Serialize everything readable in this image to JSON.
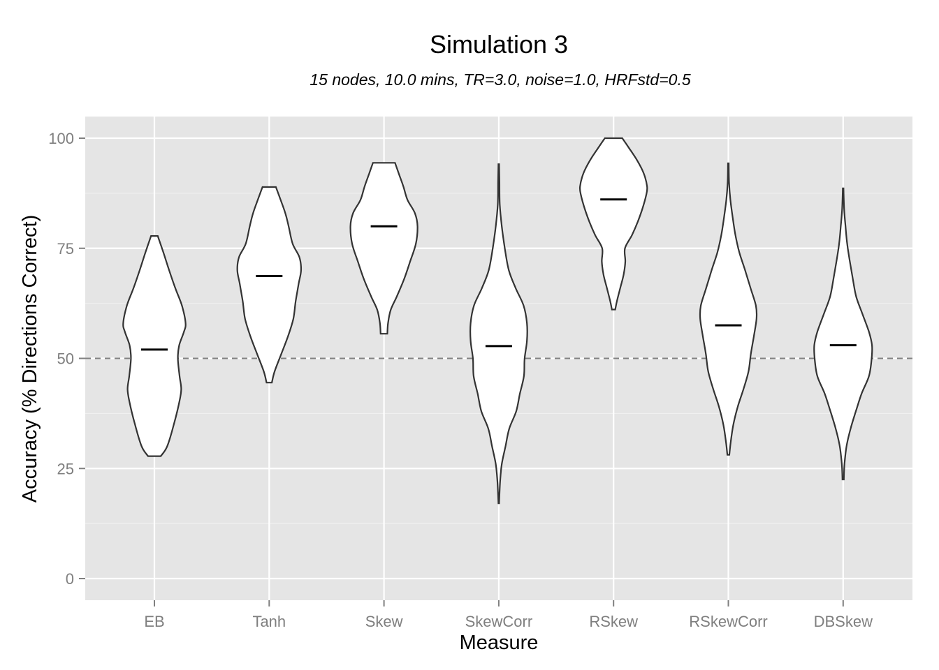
{
  "chart_data": {
    "type": "violin",
    "title": "Simulation 3",
    "subtitle": "15 nodes, 10.0 mins, TR=3.0, noise=1.0, HRFstd=0.5",
    "xlabel": "Measure",
    "ylabel": "Accuracy (% Directions Correct)",
    "ylim": [
      -5,
      105
    ],
    "yticks": [
      0,
      25,
      50,
      75,
      100
    ],
    "reference_line": 50,
    "grid": true,
    "categories": [
      "EB",
      "Tanh",
      "Skew",
      "SkewCorr",
      "RSkew",
      "RSkewCorr",
      "DBSkew"
    ],
    "series": [
      {
        "category": "EB",
        "min": 27.8,
        "max": 77.8,
        "median": 52.0,
        "density": [
          [
            27.8,
            0.19
          ],
          [
            30,
            0.38
          ],
          [
            35,
            0.58
          ],
          [
            40,
            0.74
          ],
          [
            43,
            0.8
          ],
          [
            46,
            0.75
          ],
          [
            50,
            0.7
          ],
          [
            53,
            0.74
          ],
          [
            56,
            0.88
          ],
          [
            58,
            0.93
          ],
          [
            62,
            0.82
          ],
          [
            66,
            0.62
          ],
          [
            70,
            0.44
          ],
          [
            74,
            0.27
          ],
          [
            77.8,
            0.1
          ]
        ]
      },
      {
        "category": "Tanh",
        "min": 44.5,
        "max": 88.9,
        "median": 68.7,
        "density": [
          [
            44.5,
            0.08
          ],
          [
            47,
            0.16
          ],
          [
            51,
            0.36
          ],
          [
            55,
            0.56
          ],
          [
            59,
            0.72
          ],
          [
            63,
            0.79
          ],
          [
            67,
            0.88
          ],
          [
            70,
            0.95
          ],
          [
            73,
            0.9
          ],
          [
            76,
            0.7
          ],
          [
            80,
            0.58
          ],
          [
            83,
            0.48
          ],
          [
            86,
            0.34
          ],
          [
            88.9,
            0.2
          ]
        ]
      },
      {
        "category": "Skew",
        "min": 55.6,
        "max": 94.4,
        "median": 80.0,
        "density": [
          [
            55.6,
            0.1
          ],
          [
            58,
            0.12
          ],
          [
            61,
            0.2
          ],
          [
            64,
            0.38
          ],
          [
            68,
            0.6
          ],
          [
            72,
            0.78
          ],
          [
            76,
            0.95
          ],
          [
            80,
            1.0
          ],
          [
            83,
            0.92
          ],
          [
            86,
            0.7
          ],
          [
            89,
            0.58
          ],
          [
            92,
            0.44
          ],
          [
            94.4,
            0.33
          ]
        ]
      },
      {
        "category": "SkewCorr",
        "min": 17.1,
        "max": 94.1,
        "median": 52.8,
        "density": [
          [
            17.1,
            0.01
          ],
          [
            22,
            0.04
          ],
          [
            26,
            0.09
          ],
          [
            30,
            0.2
          ],
          [
            34,
            0.31
          ],
          [
            38,
            0.52
          ],
          [
            42,
            0.63
          ],
          [
            46,
            0.75
          ],
          [
            50,
            0.77
          ],
          [
            54,
            0.84
          ],
          [
            58,
            0.84
          ],
          [
            62,
            0.74
          ],
          [
            66,
            0.5
          ],
          [
            70,
            0.3
          ],
          [
            75,
            0.18
          ],
          [
            80,
            0.09
          ],
          [
            85,
            0.03
          ],
          [
            90,
            0.02
          ],
          [
            94.1,
            0.01
          ]
        ]
      },
      {
        "category": "RSkew",
        "min": 61.1,
        "max": 100,
        "median": 86.1,
        "density": [
          [
            61.1,
            0.05
          ],
          [
            63,
            0.1
          ],
          [
            66,
            0.2
          ],
          [
            69,
            0.3
          ],
          [
            72,
            0.35
          ],
          [
            75,
            0.34
          ],
          [
            78,
            0.55
          ],
          [
            81,
            0.72
          ],
          [
            84,
            0.86
          ],
          [
            87,
            0.97
          ],
          [
            89,
            1.0
          ],
          [
            92,
            0.9
          ],
          [
            95,
            0.7
          ],
          [
            98,
            0.44
          ],
          [
            100,
            0.26
          ]
        ]
      },
      {
        "category": "RSkewCorr",
        "min": 28.1,
        "max": 94.3,
        "median": 57.5,
        "density": [
          [
            28.1,
            0.03
          ],
          [
            31,
            0.07
          ],
          [
            35,
            0.15
          ],
          [
            39,
            0.28
          ],
          [
            43,
            0.45
          ],
          [
            47,
            0.6
          ],
          [
            51,
            0.67
          ],
          [
            55,
            0.76
          ],
          [
            59,
            0.84
          ],
          [
            62,
            0.82
          ],
          [
            66,
            0.66
          ],
          [
            70,
            0.5
          ],
          [
            74,
            0.33
          ],
          [
            78,
            0.21
          ],
          [
            82,
            0.13
          ],
          [
            86,
            0.06
          ],
          [
            90,
            0.02
          ],
          [
            94.3,
            0.01
          ]
        ]
      },
      {
        "category": "DBSkew",
        "min": 22.5,
        "max": 88.6,
        "median": 53.0,
        "density": [
          [
            22.5,
            0.02
          ],
          [
            26,
            0.04
          ],
          [
            30,
            0.1
          ],
          [
            34,
            0.22
          ],
          [
            38,
            0.38
          ],
          [
            42,
            0.55
          ],
          [
            46,
            0.77
          ],
          [
            50,
            0.85
          ],
          [
            53,
            0.86
          ],
          [
            56,
            0.77
          ],
          [
            60,
            0.58
          ],
          [
            64,
            0.39
          ],
          [
            68,
            0.29
          ],
          [
            72,
            0.2
          ],
          [
            76,
            0.12
          ],
          [
            80,
            0.07
          ],
          [
            84,
            0.03
          ],
          [
            88.6,
            0.01
          ]
        ]
      }
    ]
  }
}
